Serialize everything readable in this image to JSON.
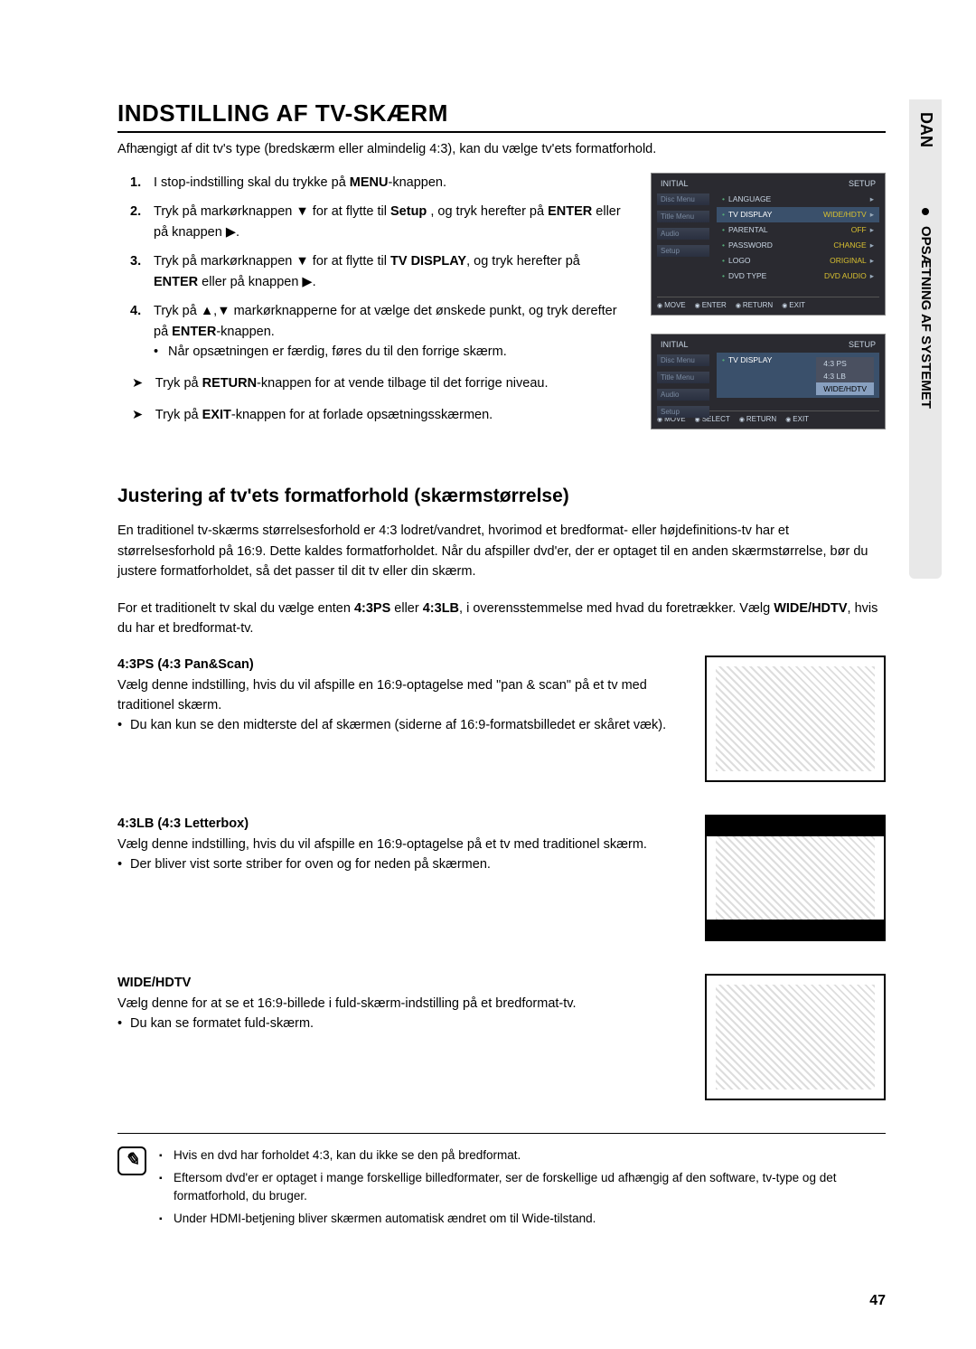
{
  "sidetab": {
    "lang": "DAN",
    "section": "OPSÆTNING AF SYSTEMET"
  },
  "title": "INDSTILLING AF TV-SKÆRM",
  "intro": "Afhængigt af dit tv's type (bredskærm eller almindelig 4:3), kan du vælge tv'ets formatforhold.",
  "steps": {
    "s1": {
      "num": "1.",
      "pre": "I stop-indstilling skal du trykke på ",
      "b1": "MENU",
      "post": "-knappen."
    },
    "s2": {
      "num": "2.",
      "pre": "Tryk på markørknappen ▼ for at flytte til ",
      "b1": "Setup",
      "mid": " , og tryk herefter på ",
      "b2": "ENTER",
      "post": " eller på knappen ▶."
    },
    "s3": {
      "num": "3.",
      "pre": "Tryk på markørknappen ▼  for at flytte til ",
      "b1": "TV DISPLAY",
      "mid": ", og tryk herefter på ",
      "b2": "ENTER",
      "post": " eller på knappen ▶."
    },
    "s4": {
      "num": "4.",
      "pre": "Tryk på ▲,▼ markørknapperne for at vælge det ønskede punkt, og tryk derefter på ",
      "b1": "ENTER",
      "post": "-knappen.",
      "sub": "Når opsætningen er færdig, føres du til den forrige skærm."
    }
  },
  "subnotes": {
    "n1": {
      "pre": "Tryk på ",
      "b1": "RETURN",
      "post": "-knappen for at vende tilbage til det forrige niveau."
    },
    "n2": {
      "pre": "Tryk på ",
      "b1": "EXIT",
      "post": "-knappen for at forlade opsætningsskærmen."
    }
  },
  "subtitle": "Justering af tv'ets formatforhold (skærmstørrelse)",
  "para1": "En traditionel tv-skærms størrelsesforhold er 4:3 lodret/vandret, hvorimod et bredformat- eller højdefinitions-tv har et størrelsesforhold på 16:9. Dette kaldes formatforholdet. Når du afspiller dvd'er, der er optaget til en anden skærmstørrelse, bør du justere formatforholdet, så det passer til dit tv eller din skærm.",
  "para2": {
    "pre": "For et traditionelt tv skal du vælge enten ",
    "b1": "4:3PS",
    "mid1": " eller ",
    "b2": "4:3LB",
    "mid2": ", i overensstemmelse med hvad du foretrækker. Vælg ",
    "b3": "WIDE/HDTV",
    "post": ", hvis du har et bredformat-tv."
  },
  "formats": {
    "ps": {
      "title": "4:3PS (4:3 Pan&Scan)",
      "desc": "Vælg denne indstilling, hvis du vil afspille en 16:9-optagelse med \"pan & scan\" på et tv med traditionel skærm.",
      "bullet": "Du kan kun se den midterste del af skærmen (siderne af 16:9-formatsbilledet er skåret væk)."
    },
    "lb": {
      "title": "4:3LB (4:3 Letterbox)",
      "desc": "Vælg denne indstilling, hvis du vil afspille en 16:9-optagelse på et tv med traditionel skærm.",
      "bullet": "Der bliver vist sorte striber for oven og for neden på skærmen."
    },
    "wide": {
      "title": "WIDE/HDTV",
      "desc": "Vælg denne for at se et 16:9-billede i fuld-skærm-indstilling på et bredformat-tv.",
      "bullet": "Du kan se formatet fuld-skærm."
    }
  },
  "notes": {
    "n1": "Hvis en dvd har forholdet 4:3, kan du ikke se den på bredformat.",
    "n2": "Eftersom dvd'er er optaget i mange forskellige billedformater, ser de forskellige ud afhængig af den software, tv-type og det formatforhold, du bruger.",
    "n3": "Under HDMI-betjening bliver skærmen automatisk ændret om til Wide-tilstand."
  },
  "osd1": {
    "tl": "INITIAL",
    "tr": "SETUP",
    "side": [
      "Disc Menu",
      "Title Menu",
      "Audio",
      "Setup"
    ],
    "rows": [
      {
        "label": "LANGUAGE",
        "val": "",
        "hl": false
      },
      {
        "label": "TV DISPLAY",
        "val": "WIDE/HDTV",
        "hl": true
      },
      {
        "label": "PARENTAL",
        "val": "OFF",
        "hl": false
      },
      {
        "label": "PASSWORD",
        "val": "CHANGE",
        "hl": false
      },
      {
        "label": "LOGO",
        "val": "ORIGINAL",
        "hl": false
      },
      {
        "label": "DVD TYPE",
        "val": "DVD AUDIO",
        "hl": false
      }
    ],
    "footer": [
      "MOVE",
      "ENTER",
      "RETURN",
      "EXIT"
    ]
  },
  "osd2": {
    "tl": "INITIAL",
    "tr": "SETUP",
    "side": [
      "Disc Menu",
      "Title Menu",
      "Audio",
      "Setup"
    ],
    "label": "TV DISPLAY",
    "options": [
      "4:3 PS",
      "4:3 LB",
      "WIDE/HDTV"
    ],
    "selected": 2,
    "footer": [
      "MOVE",
      "SELECT",
      "RETURN",
      "EXIT"
    ]
  },
  "page_num": "47"
}
